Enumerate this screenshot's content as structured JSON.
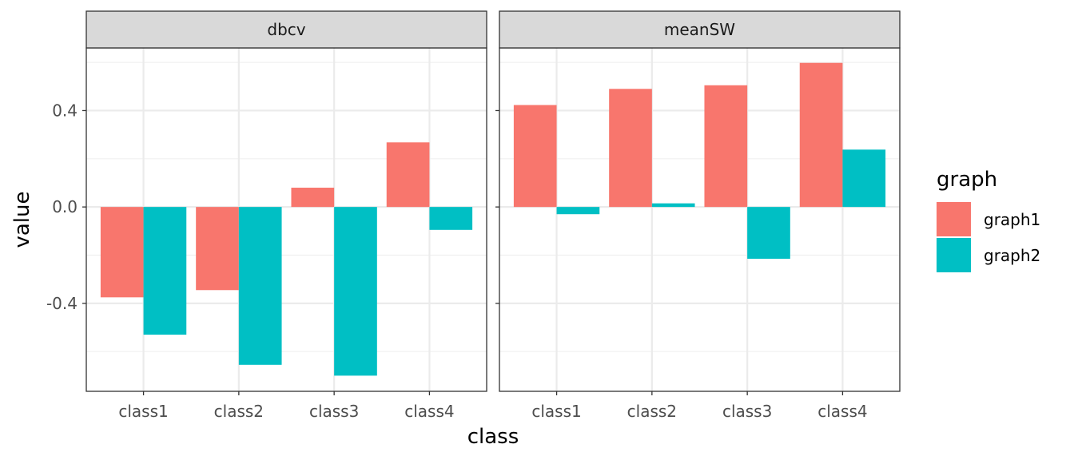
{
  "chart_data": {
    "type": "bar",
    "xlabel": "class",
    "ylabel": "value",
    "categories": [
      "class1",
      "class2",
      "class3",
      "class4"
    ],
    "ylim": [
      -0.765,
      0.66
    ],
    "y_ticks": [
      -0.4,
      0.0,
      0.4
    ],
    "y_tick_labels": [
      "-0.4",
      "0.0",
      "0.4"
    ],
    "grid": true,
    "legend": {
      "title": "graph",
      "position": "right",
      "entries": [
        "graph1",
        "graph2"
      ]
    },
    "colors": {
      "graph1": "#F8766D",
      "graph2": "#00BFC4"
    },
    "panels": [
      {
        "label": "dbcv",
        "series": [
          {
            "name": "graph1",
            "values": [
              -0.375,
              -0.345,
              0.08,
              0.268
            ]
          },
          {
            "name": "graph2",
            "values": [
              -0.53,
              -0.655,
              -0.7,
              -0.095
            ]
          }
        ]
      },
      {
        "label": "meanSW",
        "series": [
          {
            "name": "graph1",
            "values": [
              0.423,
              0.49,
              0.505,
              0.598
            ]
          },
          {
            "name": "graph2",
            "values": [
              -0.03,
              0.015,
              -0.215,
              0.238
            ]
          }
        ]
      }
    ]
  }
}
